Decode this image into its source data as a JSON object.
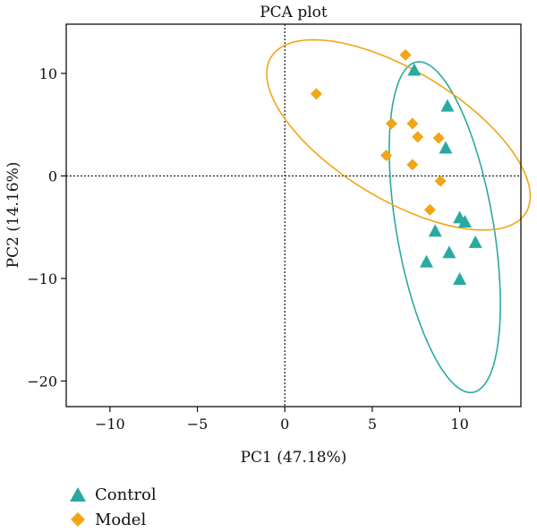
{
  "chart_data": {
    "type": "scatter",
    "title": "PCA plot",
    "xlabel": "PC1 (47.18%)",
    "ylabel": "PC2 (14.16%)",
    "xlim": [
      -12.5,
      13.5
    ],
    "ylim": [
      -22.5,
      14.8
    ],
    "xticks": [
      -10,
      -5,
      0,
      5,
      10
    ],
    "yticks": [
      -20,
      -10,
      0,
      10
    ],
    "grid": false,
    "reference_lines": {
      "x": 0,
      "y": 0,
      "style": "dotted"
    },
    "legend_position": "bottom-left (outside)",
    "series": [
      {
        "name": "Control",
        "marker": "triangle",
        "color": "#2aa9a3",
        "x": [
          7.4,
          9.3,
          9.2,
          10.0,
          10.3,
          8.6,
          10.9,
          9.4,
          8.1,
          10.0
        ],
        "y": [
          10.3,
          6.8,
          2.7,
          -4.1,
          -4.5,
          -5.4,
          -6.5,
          -7.5,
          -8.4,
          -10.1
        ],
        "ellipse": {
          "cx": 9.15,
          "cy": -5.0,
          "rx": 16.2,
          "ry": 2.8,
          "rotation_deg": -84.6
        }
      },
      {
        "name": "Model",
        "marker": "diamond",
        "color": "#f2a516",
        "x": [
          6.9,
          1.8,
          6.1,
          7.3,
          7.6,
          8.8,
          5.8,
          7.3,
          8.9,
          8.3
        ],
        "y": [
          11.8,
          8.0,
          5.1,
          5.1,
          3.8,
          3.7,
          2.0,
          1.1,
          -0.5,
          -3.3
        ],
        "ellipse": {
          "cx": 6.5,
          "cy": 4.0,
          "rx": 10.9,
          "ry": 4.9,
          "rotation_deg": -54
        }
      }
    ]
  }
}
